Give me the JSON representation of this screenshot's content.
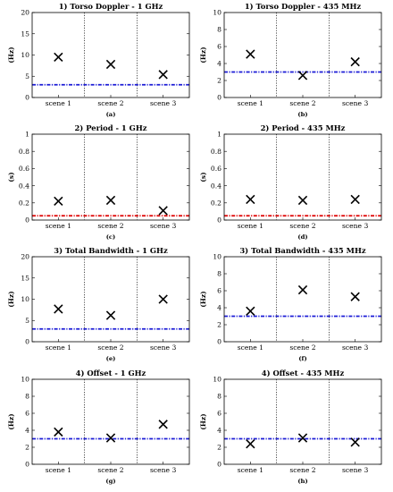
{
  "figure": {
    "panels": [
      "(a)",
      "(b)",
      "(c)",
      "(d)",
      "(e)",
      "(f)",
      "(g)",
      "(h)"
    ]
  },
  "chart_data": [
    {
      "type": "scatter",
      "label": "(a)",
      "title": "1) Torso Doppler - 1 GHz",
      "ylabel": "(Hz)",
      "categories": [
        "scene 1",
        "scene 2",
        "scene 3"
      ],
      "values": [
        9.5,
        7.8,
        5.4
      ],
      "ylim": [
        0,
        20
      ],
      "yticks": [
        0,
        5,
        10,
        15,
        20
      ],
      "threshold": 3.0,
      "threshold_color": "#1c1cd6",
      "marker": "x",
      "grid": false
    },
    {
      "type": "scatter",
      "label": "(b)",
      "title": "1) Torso Doppler - 435 MHz",
      "ylabel": "(Hz)",
      "categories": [
        "scene 1",
        "scene 2",
        "scene 3"
      ],
      "values": [
        5.1,
        2.6,
        4.2
      ],
      "ylim": [
        0,
        10
      ],
      "yticks": [
        0,
        2,
        4,
        6,
        8,
        10
      ],
      "threshold": 3.0,
      "threshold_color": "#1c1cd6",
      "marker": "x",
      "grid": false
    },
    {
      "type": "scatter",
      "label": "(c)",
      "title": "2) Period - 1 GHz",
      "ylabel": "(s)",
      "categories": [
        "scene 1",
        "scene 2",
        "scene 3"
      ],
      "values": [
        0.22,
        0.23,
        0.11
      ],
      "ylim": [
        0,
        1
      ],
      "yticks": [
        0,
        0.2,
        0.4,
        0.6,
        0.8,
        1
      ],
      "threshold": 0.05,
      "threshold_color": "#e01010",
      "marker": "x",
      "grid": false
    },
    {
      "type": "scatter",
      "label": "(d)",
      "title": "2) Period - 435 MHz",
      "ylabel": "(s)",
      "categories": [
        "scene 1",
        "scene 2",
        "scene 3"
      ],
      "values": [
        0.24,
        0.23,
        0.24
      ],
      "ylim": [
        0,
        1
      ],
      "yticks": [
        0,
        0.2,
        0.4,
        0.6,
        0.8,
        1
      ],
      "threshold": 0.05,
      "threshold_color": "#e01010",
      "marker": "x",
      "grid": false
    },
    {
      "type": "scatter",
      "label": "(e)",
      "title": "3) Total Bandwidth - 1 GHz",
      "ylabel": "(Hz)",
      "categories": [
        "scene 1",
        "scene 2",
        "scene 3"
      ],
      "values": [
        7.7,
        6.2,
        10.0
      ],
      "ylim": [
        0,
        20
      ],
      "yticks": [
        0,
        5,
        10,
        15,
        20
      ],
      "threshold": 3.0,
      "threshold_color": "#1c1cd6",
      "marker": "x",
      "grid": false
    },
    {
      "type": "scatter",
      "label": "(f)",
      "title": "3) Total Bandwidth - 435 MHz",
      "ylabel": "(Hz)",
      "categories": [
        "scene 1",
        "scene 2",
        "scene 3"
      ],
      "values": [
        3.6,
        6.1,
        5.3
      ],
      "ylim": [
        0,
        10
      ],
      "yticks": [
        0,
        2,
        4,
        6,
        8,
        10
      ],
      "threshold": 3.0,
      "threshold_color": "#1c1cd6",
      "marker": "x",
      "grid": false
    },
    {
      "type": "scatter",
      "label": "(g)",
      "title": "4) Offset - 1 GHz",
      "ylabel": "(Hz)",
      "categories": [
        "scene 1",
        "scene 2",
        "scene 3"
      ],
      "values": [
        3.8,
        3.1,
        4.7
      ],
      "ylim": [
        0,
        10
      ],
      "yticks": [
        0,
        2,
        4,
        6,
        8,
        10
      ],
      "threshold": 3.0,
      "threshold_color": "#1c1cd6",
      "marker": "x",
      "grid": false
    },
    {
      "type": "scatter",
      "label": "(h)",
      "title": "4) Offset - 435 MHz",
      "ylabel": "(Hz)",
      "categories": [
        "scene 1",
        "scene 2",
        "scene 3"
      ],
      "values": [
        2.4,
        3.1,
        2.6
      ],
      "ylim": [
        0,
        10
      ],
      "yticks": [
        0,
        2,
        4,
        6,
        8,
        10
      ],
      "threshold": 3.0,
      "threshold_color": "#1c1cd6",
      "marker": "x",
      "grid": false
    }
  ]
}
